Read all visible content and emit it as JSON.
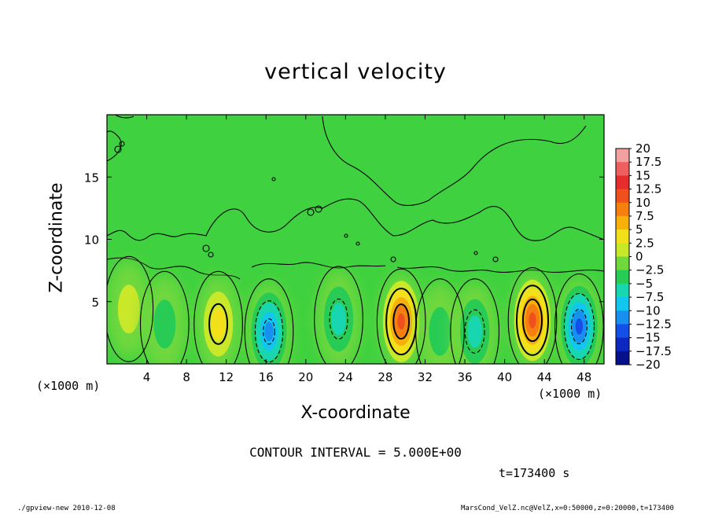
{
  "chart_data": {
    "type": "heatmap",
    "title": "vertical velocity",
    "xlabel": "X-coordinate",
    "ylabel": "Z-coordinate",
    "x_unit_label": "(×1000 m)",
    "xlim": [
      0,
      50
    ],
    "ylim": [
      0,
      20
    ],
    "x_ticks": [
      "4",
      "8",
      "12",
      "16",
      "20",
      "24",
      "28",
      "32",
      "36",
      "40",
      "44",
      "48"
    ],
    "y_ticks": [
      "5",
      "10",
      "15"
    ],
    "colorbar": {
      "labels": [
        "20",
        "17.5",
        "15",
        "12.5",
        "10",
        "7.5",
        "5",
        "2.5",
        "0",
        "−2.5",
        "−5",
        "−7.5",
        "−10",
        "−12.5",
        "−15",
        "−17.5",
        "−20"
      ],
      "colors": [
        "#f3a0a0",
        "#ef5f5f",
        "#e62c2c",
        "#f0501e",
        "#f5800f",
        "#f8b00a",
        "#f2e01a",
        "#c9e82a",
        "#6fd83c",
        "#28cc55",
        "#18d6b0",
        "#12c6ee",
        "#1890f0",
        "#1450e8",
        "#0c28c0",
        "#06108a",
        "#7a10c8"
      ]
    },
    "cells": [
      {
        "x": 2.2,
        "z": 4.4,
        "w": 1.2
      },
      {
        "x": 5.8,
        "z": 3.2,
        "w": -3.5
      },
      {
        "x": 11.2,
        "z": 3.2,
        "w": 5.5
      },
      {
        "x": 16.3,
        "z": 2.6,
        "w": -10.5
      },
      {
        "x": 23.3,
        "z": 3.6,
        "w": -5.5
      },
      {
        "x": 29.6,
        "z": 3.4,
        "w": 12.5
      },
      {
        "x": 33.5,
        "z": 2.6,
        "w": -4.5
      },
      {
        "x": 37.0,
        "z": 2.6,
        "w": -6.0
      },
      {
        "x": 42.8,
        "z": 3.5,
        "w": 14.5
      },
      {
        "x": 47.5,
        "z": 3.0,
        "w": -12.5
      }
    ],
    "contour_interval": "CONTOUR INTERVAL = 5.000E+00",
    "time": "t=173400 s"
  },
  "footer": {
    "left": "./gpview-new  2010-12-08",
    "right": "MarsCond_VelZ.nc@VelZ,x=0:50000,z=0:20000,t=173400"
  }
}
